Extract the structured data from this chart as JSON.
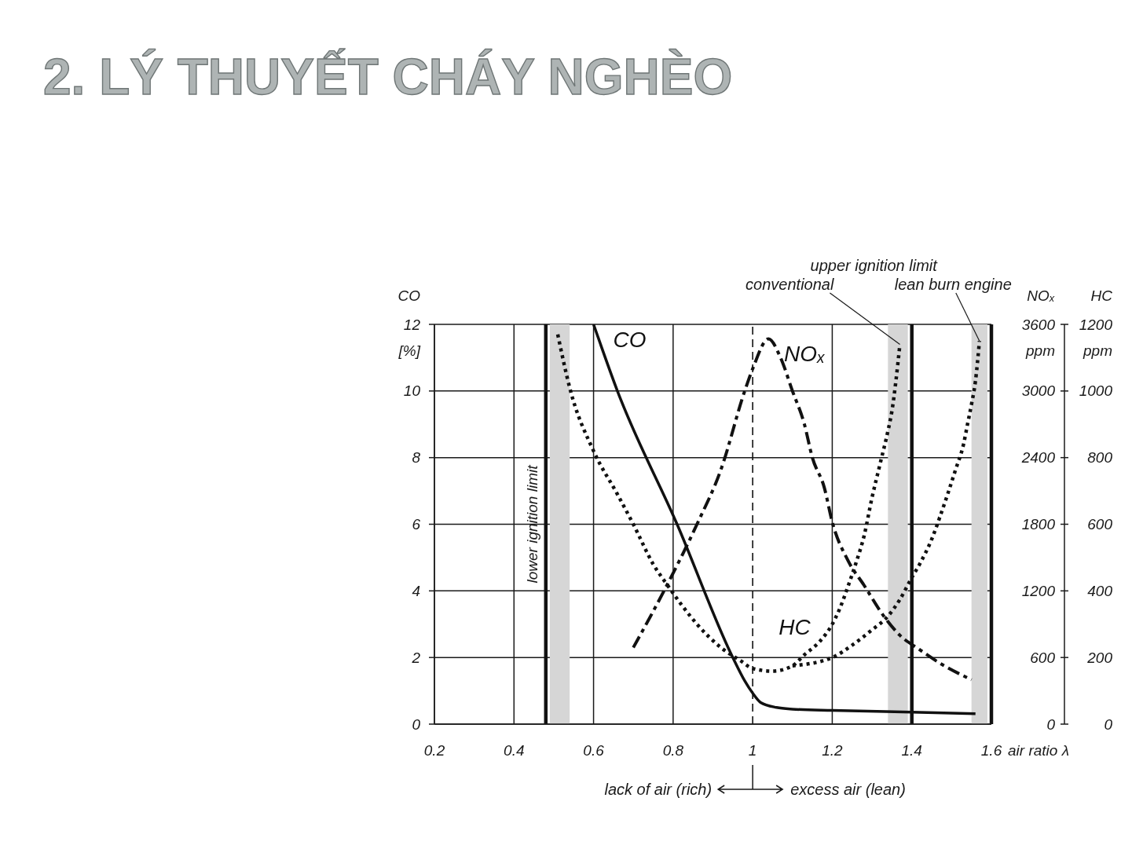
{
  "chart_data": {
    "type": "line",
    "title": "2. LÝ THUYẾT CHÁY NGHÈO",
    "xlabel": "air ratio λ",
    "ylabel": "CO [%]",
    "y2label": "NOₓ ppm",
    "y3label": "HC ppm",
    "xlim": [
      0.2,
      1.6
    ],
    "xticks": [
      0.2,
      0.4,
      0.6,
      0.8,
      1,
      1.2,
      1.4,
      1.6
    ],
    "ylim": [
      0,
      12
    ],
    "yticks": [
      0,
      2,
      4,
      6,
      8,
      10,
      12
    ],
    "y2lim": [
      0,
      3600
    ],
    "y2ticks": [
      0,
      600,
      1200,
      1800,
      2400,
      3000,
      3600
    ],
    "y3lim": [
      0,
      1200
    ],
    "y3ticks": [
      0,
      200,
      400,
      600,
      800,
      1000,
      1200
    ],
    "grid": true,
    "series": [
      {
        "name": "CO",
        "color": "#111111",
        "line_style": "solid",
        "axis": "y",
        "x": [
          0.6,
          0.66,
          0.81,
          0.95,
          0.98,
          1,
          1.02,
          1.06,
          1.1,
          1.2,
          1.4,
          1.56
        ],
        "values": [
          12,
          10,
          6,
          2,
          1.3,
          0.93,
          0.65,
          0.5,
          0.45,
          0.41,
          0.36,
          0.31
        ]
      },
      {
        "name": "NOₓ",
        "color": "#111111",
        "line_style": "dashed",
        "axis": "y2",
        "x": [
          0.7,
          0.78,
          0.86,
          0.92,
          0.98,
          1,
          1.04,
          1.07,
          1.1,
          1.13,
          1.15,
          1.18,
          1.2,
          1.24,
          1.28,
          1.33,
          1.37,
          1.42,
          1.47,
          1.55
        ],
        "values": [
          690,
          1220,
          1800,
          2290,
          3000,
          3200,
          3470,
          3300,
          3000,
          2700,
          2400,
          2130,
          1820,
          1470,
          1250,
          970,
          800,
          670,
          550,
          400
        ]
      },
      {
        "name": "HC",
        "color": "#111111",
        "line_style": "dotted",
        "axis": "y3",
        "x": [
          0.51,
          0.54,
          0.6,
          0.66,
          0.7,
          0.75,
          0.79,
          0.82,
          0.86,
          0.92,
          0.97,
          1,
          1.05,
          1.1,
          1.13,
          1.17,
          1.2,
          1.22,
          1.24,
          1.26,
          1.28,
          1.3,
          1.32,
          1.34,
          1.35,
          1.36,
          1.37
        ],
        "values": [
          1170,
          1010,
          820,
          690,
          600,
          480,
          410,
          360,
          300,
          230,
          190,
          167,
          159,
          175,
          208,
          250,
          300,
          350,
          415,
          485,
          565,
          680,
          780,
          880,
          940,
          1030,
          1140
        ]
      },
      {
        "color": "#111111",
        "line_style": "dotted",
        "axis": "y3",
        "x": [
          1.1,
          1.2,
          1.25,
          1.3,
          1.34,
          1.37,
          1.4,
          1.42,
          1.45,
          1.47,
          1.49,
          1.51,
          1.53,
          1.54,
          1.55,
          1.56,
          1.57
        ],
        "values": [
          175,
          200,
          237,
          283,
          324,
          374,
          440,
          481,
          555,
          620,
          690,
          764,
          840,
          900,
          960,
          1030,
          1150
        ]
      }
    ],
    "ref_lines": [
      {
        "axis": "x",
        "value": 0.48,
        "label": "lower ignition limit",
        "color": "#111111"
      },
      {
        "axis": "x",
        "value": 1,
        "line_style": "dashed",
        "color": "#111111"
      },
      {
        "axis": "x",
        "value": 1.4,
        "color": "#111111"
      },
      {
        "axis": "x",
        "value": 1.6,
        "color": "#111111"
      }
    ],
    "bands": [
      {
        "axis": "x",
        "from": 0.49,
        "to": 0.54,
        "color": "#d6d6d6"
      },
      {
        "axis": "x",
        "from": 1.34,
        "to": 1.39,
        "color": "#d6d6d6"
      },
      {
        "axis": "x",
        "from": 1.55,
        "to": 1.59,
        "color": "#d6d6d6"
      }
    ],
    "annotations": [
      "upper ignition limit",
      {
        "text": "conventional",
        "x": 1.37,
        "y": 11.4
      },
      {
        "text": "lean burn engine",
        "x": 1.57,
        "y": 11.5
      },
      "lack of air (rich)",
      "excess air (lean)"
    ]
  }
}
